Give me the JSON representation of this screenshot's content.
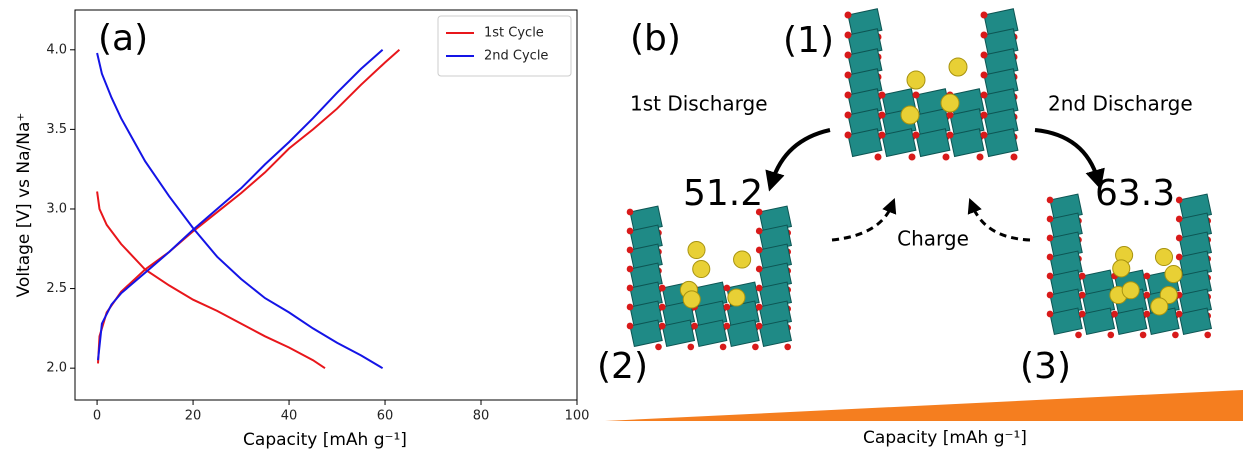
{
  "chart_data": {
    "type": "line",
    "annotation": "(a)",
    "x_label": "Capacity [mAh g⁻¹]",
    "y_label": "Voltage [V] vs Na/Na⁺",
    "xlim": [
      -4.6,
      100
    ],
    "ylim": [
      1.8,
      4.25
    ],
    "xticks": [
      0,
      20,
      40,
      60,
      80,
      100
    ],
    "yticks": [
      {
        "value": 2,
        "label": "2.0"
      },
      {
        "value": 2.5,
        "label": "2.5"
      },
      {
        "value": 3,
        "label": "3.0"
      },
      {
        "value": 3.5,
        "label": "3.5"
      },
      {
        "value": 4,
        "label": "4.0"
      }
    ],
    "legend": "upper right",
    "series": [
      {
        "name": "1st Cycle",
        "color": "#e8161b",
        "x": [
          0,
          0.5,
          2,
          5,
          10,
          15,
          20,
          25,
          30,
          35,
          40,
          45,
          47.5,
          null,
          0.2,
          0.5,
          2,
          5,
          10,
          15,
          20,
          25,
          30,
          35,
          40,
          45,
          50,
          55,
          60,
          63
        ],
        "values": [
          3.11,
          3.0,
          2.9,
          2.78,
          2.62,
          2.52,
          2.43,
          2.36,
          2.28,
          2.2,
          2.13,
          2.05,
          2.0,
          null,
          2.03,
          2.2,
          2.35,
          2.48,
          2.62,
          2.73,
          2.86,
          2.98,
          3.1,
          3.23,
          3.38,
          3.5,
          3.63,
          3.78,
          3.92,
          4.0
        ]
      },
      {
        "name": "2nd Cycle",
        "color": "#1414e6",
        "x": [
          0,
          1,
          3,
          5,
          10,
          15,
          20,
          25,
          30,
          35,
          40,
          45,
          50,
          55,
          59.5,
          null,
          0.2,
          1,
          3,
          5,
          10,
          15,
          20,
          25,
          30,
          35,
          40,
          45,
          50,
          55,
          59.5
        ],
        "values": [
          3.98,
          3.85,
          3.7,
          3.57,
          3.3,
          3.08,
          2.88,
          2.7,
          2.56,
          2.44,
          2.35,
          2.25,
          2.16,
          2.08,
          2.0,
          null,
          2.05,
          2.28,
          2.4,
          2.47,
          2.6,
          2.73,
          2.87,
          3.0,
          3.13,
          3.28,
          3.42,
          3.57,
          3.73,
          3.88,
          4.0
        ]
      }
    ]
  },
  "panel_b": {
    "label": "(b)",
    "states": [
      "(1)",
      "(2)",
      "(3)"
    ],
    "first_discharge": "1st Discharge",
    "second_discharge": "2nd Discharge",
    "capacity_2": "51.2",
    "capacity_3": "63.3",
    "charge": "Charge",
    "axis_label": "Capacity [mAh g⁻¹]"
  }
}
